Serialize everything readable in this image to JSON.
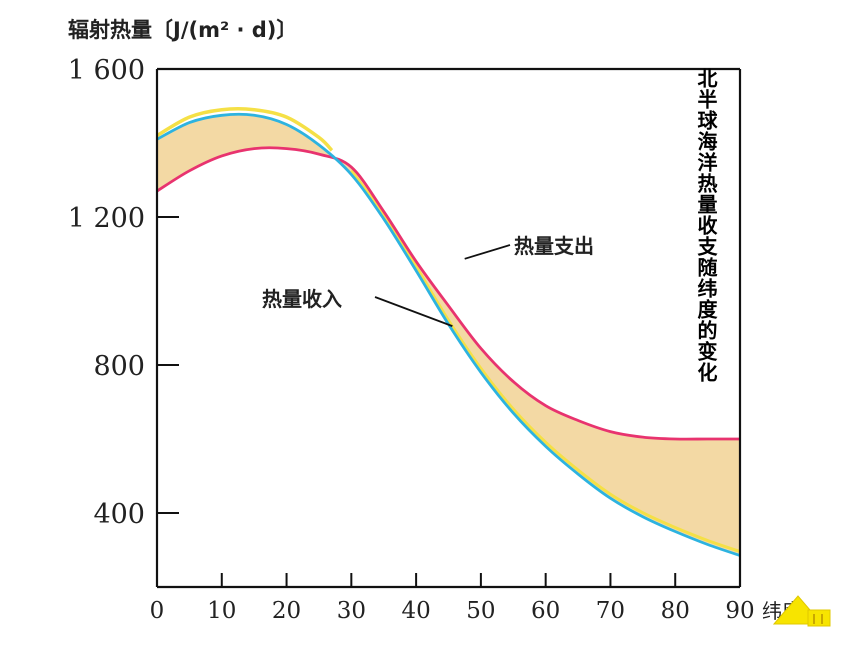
{
  "chart_data": {
    "type": "line",
    "title": "北半球海洋热量收支随纬度的变化",
    "ylabel": "辐射热量〔J/(m² · d)〕",
    "xlabel": "纬度",
    "xlim": [
      0,
      90
    ],
    "ylim": [
      200,
      1600
    ],
    "x_ticks": [
      "0",
      "10",
      "20",
      "30",
      "40",
      "50",
      "60",
      "70",
      "80",
      "90"
    ],
    "y_ticks": [
      {
        "value": 400,
        "label": "400"
      },
      {
        "value": 800,
        "label": "800"
      },
      {
        "value": 1200,
        "label": "1 200"
      },
      {
        "value": 1600,
        "label": "1 600"
      }
    ],
    "grid": false,
    "series": [
      {
        "name": "热量收入",
        "color": "#2db3e0",
        "x": [
          0,
          5,
          10,
          15,
          20,
          25,
          30,
          35,
          40,
          45,
          50,
          55,
          60,
          65,
          70,
          75,
          80,
          85,
          90
        ],
        "y": [
          1410,
          1455,
          1475,
          1475,
          1450,
          1395,
          1315,
          1195,
          1055,
          910,
          780,
          670,
          580,
          505,
          440,
          390,
          350,
          315,
          285
        ]
      },
      {
        "name": "热量支出",
        "color": "#e8336f",
        "x": [
          0,
          5,
          10,
          15,
          20,
          25,
          30,
          35,
          40,
          45,
          50,
          55,
          60,
          65,
          70,
          75,
          80,
          85,
          90
        ],
        "y": [
          1270,
          1325,
          1365,
          1385,
          1385,
          1370,
          1335,
          1215,
          1080,
          960,
          845,
          755,
          690,
          650,
          620,
          605,
          600,
          600,
          600
        ]
      }
    ],
    "surplus_outline": {
      "color": "#f5e046",
      "x": [
        0,
        5,
        10,
        15,
        20,
        25,
        27
      ],
      "y": [
        1420,
        1470,
        1490,
        1490,
        1470,
        1415,
        1380
      ]
    },
    "fill_color": "#f3d9a4"
  },
  "labels": {
    "income": "热量收入",
    "expense": "热量支出"
  },
  "nav": {
    "icon": "triangle-arrow-icon",
    "color": "#f7e400"
  }
}
